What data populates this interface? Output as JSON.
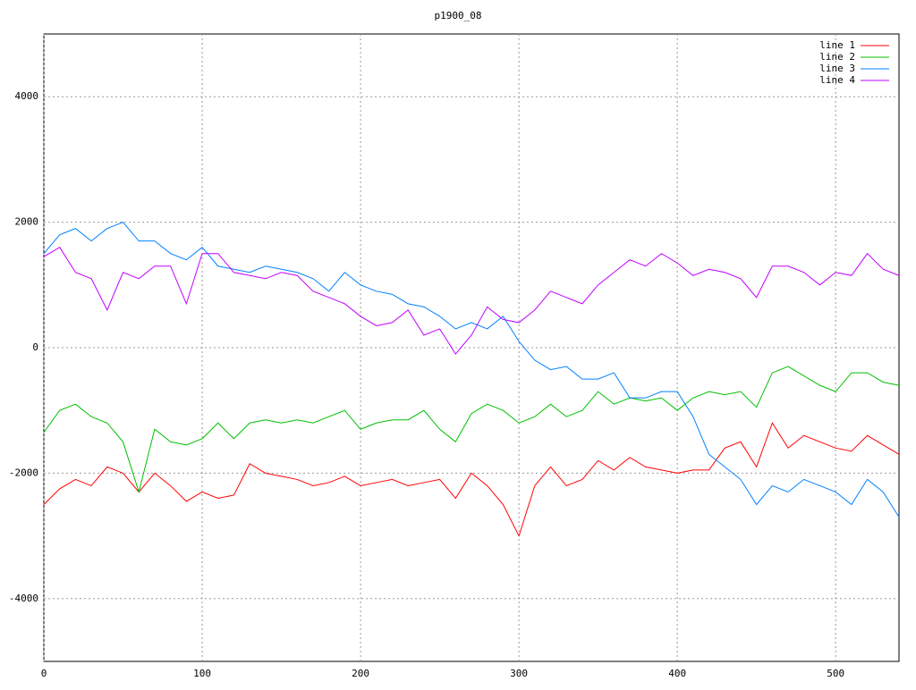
{
  "chart_data": {
    "type": "line",
    "title": "p1900_08",
    "x": [
      0,
      10,
      20,
      30,
      40,
      50,
      60,
      70,
      80,
      90,
      100,
      110,
      120,
      130,
      140,
      150,
      160,
      170,
      180,
      190,
      200,
      210,
      220,
      230,
      240,
      250,
      260,
      270,
      280,
      290,
      300,
      310,
      320,
      330,
      340,
      350,
      360,
      370,
      380,
      390,
      400,
      410,
      420,
      430,
      440,
      450,
      460,
      470,
      480,
      490,
      500,
      510,
      520,
      530,
      540
    ],
    "series": [
      {
        "name": "line 1",
        "color": "#ff0000",
        "values": [
          -2500,
          -2250,
          -2100,
          -2200,
          -1900,
          -2000,
          -2300,
          -2000,
          -2200,
          -2450,
          -2300,
          -2400,
          -2350,
          -1850,
          -2000,
          -2050,
          -2100,
          -2200,
          -2150,
          -2050,
          -2200,
          -2150,
          -2100,
          -2200,
          -2150,
          -2100,
          -2400,
          -2000,
          -2200,
          -2500,
          -3000,
          -2200,
          -1900,
          -2200,
          -2100,
          -1800,
          -1950,
          -1750,
          -1900,
          -1950,
          -2000,
          -1950,
          -1950,
          -1600,
          -1500,
          -1900,
          -1200,
          -1600,
          -1400,
          -1500,
          -1600,
          -1650,
          -1400,
          -1550,
          -1700
        ]
      },
      {
        "name": "line 2",
        "color": "#00c000",
        "values": [
          -1350,
          -1000,
          -900,
          -1100,
          -1200,
          -1500,
          -2300,
          -1300,
          -1500,
          -1550,
          -1450,
          -1200,
          -1450,
          -1200,
          -1150,
          -1200,
          -1150,
          -1200,
          -1100,
          -1000,
          -1300,
          -1200,
          -1150,
          -1150,
          -1000,
          -1300,
          -1500,
          -1050,
          -900,
          -1000,
          -1200,
          -1100,
          -900,
          -1100,
          -1000,
          -700,
          -900,
          -800,
          -850,
          -800,
          -1000,
          -800,
          -700,
          -750,
          -700,
          -950,
          -400,
          -300,
          -450,
          -600,
          -700,
          -400,
          -400,
          -550,
          -600
        ]
      },
      {
        "name": "line 3",
        "color": "#0080ff",
        "values": [
          1500,
          1800,
          1900,
          1700,
          1900,
          2000,
          1700,
          1700,
          1500,
          1400,
          1600,
          1300,
          1250,
          1200,
          1300,
          1250,
          1200,
          1100,
          900,
          1200,
          1000,
          900,
          850,
          700,
          650,
          500,
          300,
          400,
          300,
          500,
          100,
          -200,
          -350,
          -300,
          -500,
          -500,
          -400,
          -800,
          -800,
          -700,
          -700,
          -1100,
          -1700,
          -1900,
          -2100,
          -2500,
          -2200,
          -2300,
          -2100,
          -2200,
          -2300,
          -2500,
          -2100,
          -2300,
          -2700
        ]
      },
      {
        "name": "line 4",
        "color": "#c000ff",
        "values": [
          1450,
          1600,
          1200,
          1100,
          600,
          1200,
          1100,
          1300,
          1300,
          700,
          1500,
          1500,
          1200,
          1150,
          1100,
          1200,
          1150,
          900,
          800,
          700,
          500,
          350,
          400,
          600,
          200,
          300,
          -100,
          200,
          650,
          450,
          400,
          600,
          900,
          800,
          700,
          1000,
          1200,
          1400,
          1300,
          1500,
          1350,
          1150,
          1250,
          1200,
          1100,
          800,
          1300,
          1300,
          1200,
          1000,
          1200,
          1150,
          1500,
          1250,
          1150
        ]
      }
    ],
    "xlim": [
      0,
      540
    ],
    "xticks": [
      0,
      100,
      200,
      300,
      400,
      500
    ],
    "ylim": [
      -5000,
      5000
    ],
    "yticks": [
      -4000,
      -2000,
      0,
      2000,
      4000
    ],
    "grid": true,
    "legend": "top-right"
  }
}
